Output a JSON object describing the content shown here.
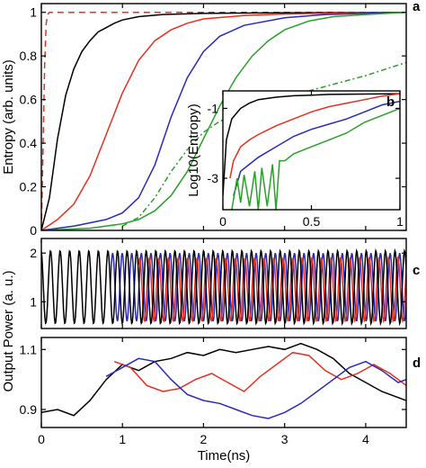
{
  "chart_data": [
    {
      "id": "a",
      "type": "line",
      "panel_label": "a",
      "ylabel": "Entropy (arb. units)",
      "xlabel": "",
      "xlim": [
        0,
        4.5
      ],
      "ylim": [
        0,
        1.04
      ],
      "xticks": [
        0,
        1,
        2,
        3,
        4
      ],
      "xtick_labels": [
        "",
        "",
        "",
        "",
        ""
      ],
      "yticks": [
        0,
        0.2,
        0.4,
        0.6,
        0.8,
        1
      ],
      "ytick_labels": [
        "0",
        "0.2",
        "0.4",
        "0.6",
        "0.8",
        "1"
      ],
      "grid": false,
      "series": [
        {
          "color": "#e53020",
          "style": "dashed",
          "x": [
            0,
            0.02,
            0.04,
            0.06,
            0.08,
            0.1,
            4.5
          ],
          "y": [
            0,
            0.35,
            0.75,
            0.95,
            0.99,
            1.0,
            1.0
          ]
        },
        {
          "color": "#000000",
          "style": "solid",
          "x": [
            0,
            0.1,
            0.2,
            0.3,
            0.4,
            0.5,
            0.6,
            0.7,
            0.8,
            0.9,
            1.0,
            1.2,
            1.5,
            2.0,
            3.0,
            4.5
          ],
          "y": [
            0,
            0.15,
            0.42,
            0.62,
            0.74,
            0.82,
            0.87,
            0.91,
            0.93,
            0.95,
            0.965,
            0.98,
            0.99,
            0.995,
            0.998,
            1.0
          ]
        },
        {
          "color": "#e53020",
          "style": "solid",
          "x": [
            0,
            0.2,
            0.4,
            0.6,
            0.8,
            1.0,
            1.2,
            1.4,
            1.6,
            1.8,
            2.0,
            2.5,
            3.0,
            3.5,
            4.5
          ],
          "y": [
            0,
            0.05,
            0.12,
            0.25,
            0.44,
            0.63,
            0.78,
            0.87,
            0.92,
            0.95,
            0.97,
            0.985,
            0.992,
            0.996,
            1.0
          ]
        },
        {
          "color": "#2a2ab8",
          "style": "solid",
          "x": [
            0,
            0.4,
            0.8,
            1.0,
            1.2,
            1.4,
            1.6,
            1.8,
            2.0,
            2.2,
            2.5,
            3.0,
            3.5,
            4.0,
            4.5
          ],
          "y": [
            0,
            0.02,
            0.05,
            0.08,
            0.15,
            0.3,
            0.52,
            0.7,
            0.82,
            0.89,
            0.94,
            0.975,
            0.99,
            0.995,
            1.0
          ]
        },
        {
          "color": "#2aa02a",
          "style": "solid",
          "x": [
            0,
            0.6,
            1.0,
            1.2,
            1.4,
            1.6,
            1.8,
            2.0,
            2.2,
            2.4,
            2.6,
            2.8,
            3.0,
            3.3,
            3.6,
            4.0,
            4.5
          ],
          "y": [
            0,
            0.01,
            0.03,
            0.05,
            0.09,
            0.16,
            0.27,
            0.42,
            0.57,
            0.7,
            0.8,
            0.87,
            0.92,
            0.96,
            0.98,
            0.99,
            1.0
          ]
        },
        {
          "color": "#2aa02a",
          "style": "dashdot",
          "x": [
            1.0,
            1.2,
            1.4,
            1.6,
            1.8,
            2.0,
            2.2,
            2.5,
            3.0,
            3.5,
            4.0,
            4.5
          ],
          "y": [
            0.02,
            0.06,
            0.15,
            0.27,
            0.37,
            0.45,
            0.5,
            0.55,
            0.61,
            0.66,
            0.71,
            0.77
          ]
        }
      ]
    },
    {
      "id": "b",
      "type": "line",
      "panel_label": "b",
      "ylabel": "Log10(Entropy)",
      "xlabel": "",
      "xlim": [
        0,
        1
      ],
      "ylim": [
        -3.9,
        -0.5
      ],
      "xticks": [
        0,
        0.5,
        1
      ],
      "xtick_labels": [
        "0",
        "0.5",
        "1"
      ],
      "yticks": [
        -3,
        -1
      ],
      "ytick_labels": [
        "-3",
        "-1"
      ],
      "grid": false,
      "series": [
        {
          "color": "#000000",
          "style": "solid",
          "x": [
            0,
            0.02,
            0.05,
            0.1,
            0.15,
            0.2,
            0.3,
            0.4,
            0.5,
            0.6,
            0.8,
            1.0
          ],
          "y": [
            -3.5,
            -1.9,
            -1.3,
            -1.0,
            -0.85,
            -0.75,
            -0.68,
            -0.64,
            -0.62,
            -0.6,
            -0.59,
            -0.58
          ]
        },
        {
          "color": "#e53020",
          "style": "solid",
          "x": [
            0.04,
            0.06,
            0.1,
            0.15,
            0.2,
            0.3,
            0.4,
            0.5,
            0.6,
            0.7,
            0.8,
            0.9,
            1.0
          ],
          "y": [
            -3.0,
            -2.5,
            -2.1,
            -1.9,
            -1.75,
            -1.5,
            -1.3,
            -1.1,
            -0.95,
            -0.85,
            -0.75,
            -0.65,
            -0.58
          ]
        },
        {
          "color": "#2a2ab8",
          "style": "solid",
          "x": [
            0.06,
            0.1,
            0.15,
            0.2,
            0.3,
            0.4,
            0.5,
            0.6,
            0.7,
            0.8,
            0.9,
            1.0
          ],
          "y": [
            -3.5,
            -2.8,
            -2.6,
            -2.4,
            -2.1,
            -1.8,
            -1.6,
            -1.45,
            -1.3,
            -1.1,
            -0.9,
            -0.8
          ]
        },
        {
          "color": "#2aa02a",
          "style": "solid",
          "x": [
            0.05,
            0.08,
            0.1,
            0.12,
            0.15,
            0.18,
            0.2,
            0.22,
            0.25,
            0.28,
            0.3,
            0.32,
            0.35,
            0.4,
            0.5,
            0.6,
            0.7,
            0.8,
            0.9,
            1.0
          ],
          "y": [
            -3.9,
            -3.0,
            -3.7,
            -2.9,
            -3.8,
            -2.8,
            -3.9,
            -2.7,
            -3.8,
            -2.6,
            -3.9,
            -2.5,
            -2.5,
            -2.3,
            -2.1,
            -1.9,
            -1.7,
            -1.4,
            -1.2,
            -1.0
          ]
        }
      ]
    },
    {
      "id": "c",
      "type": "line",
      "panel_label": "c",
      "ylabel": "Output Power (a. u.)",
      "xlabel": "",
      "xlim": [
        0,
        4.5
      ],
      "ylim": [
        0.45,
        2.3
      ],
      "xticks": [
        0,
        1,
        2,
        3,
        4
      ],
      "xtick_labels": [
        "",
        "",
        "",
        "",
        ""
      ],
      "yticks": [
        1,
        2
      ],
      "ytick_labels": [
        "1",
        "2"
      ],
      "grid": false,
      "oscillation_period_ns": 0.118,
      "series": [
        {
          "color": "#2a2ab8",
          "style": "solid",
          "x_start": 0.85,
          "x_end": 4.5,
          "min": 0.6,
          "max": 2.0
        },
        {
          "color": "#e53020",
          "style": "solid",
          "x_start": 1.2,
          "x_end": 4.5,
          "min": 0.6,
          "max": 1.9
        },
        {
          "color": "#000000",
          "style": "solid",
          "x_start": 0.0,
          "x_end": 4.5,
          "min": 0.55,
          "max": 2.05
        }
      ]
    },
    {
      "id": "d",
      "type": "line",
      "panel_label": "d",
      "ylabel": "",
      "xlabel": "Time(ns)",
      "xlim": [
        0,
        4.5
      ],
      "ylim": [
        0.84,
        1.14
      ],
      "xticks": [
        0,
        1,
        2,
        3,
        4
      ],
      "xtick_labels": [
        "0",
        "1",
        "2",
        "3",
        "4"
      ],
      "yticks": [
        0.9,
        1.1
      ],
      "ytick_labels": [
        "0.9",
        "1.1"
      ],
      "grid": false,
      "series": [
        {
          "color": "#000000",
          "style": "solid",
          "x": [
            0,
            0.2,
            0.4,
            0.6,
            0.8,
            1.0,
            1.2,
            1.4,
            1.6,
            1.8,
            2.0,
            2.2,
            2.4,
            2.6,
            2.8,
            3.0,
            3.2,
            3.4,
            3.6,
            3.8,
            4.0,
            4.2,
            4.4,
            4.5
          ],
          "y": [
            0.89,
            0.9,
            0.88,
            0.93,
            1.0,
            1.05,
            1.03,
            1.06,
            1.07,
            1.09,
            1.08,
            1.1,
            1.09,
            1.1,
            1.11,
            1.1,
            1.12,
            1.1,
            1.07,
            1.02,
            0.99,
            0.96,
            0.94,
            0.93
          ]
        },
        {
          "color": "#e53020",
          "style": "solid",
          "x": [
            0.9,
            1.1,
            1.3,
            1.5,
            1.7,
            1.9,
            2.1,
            2.3,
            2.5,
            2.7,
            2.9,
            3.1,
            3.3,
            3.5,
            3.7,
            3.9,
            4.1,
            4.3,
            4.5
          ],
          "y": [
            1.06,
            1.04,
            0.98,
            0.96,
            0.97,
            1.0,
            1.02,
            0.99,
            0.96,
            1.01,
            1.05,
            1.09,
            1.08,
            1.03,
            1.0,
            1.02,
            1.05,
            1.02,
            0.98
          ]
        },
        {
          "color": "#2a2ab8",
          "style": "solid",
          "x": [
            0.8,
            1.0,
            1.2,
            1.4,
            1.6,
            1.8,
            2.0,
            2.2,
            2.4,
            2.6,
            2.8,
            3.0,
            3.2,
            3.4,
            3.6,
            3.8,
            4.0,
            4.2,
            4.4,
            4.5
          ],
          "y": [
            1.01,
            1.04,
            1.07,
            1.06,
            1.0,
            0.95,
            0.93,
            0.92,
            0.9,
            0.88,
            0.87,
            0.89,
            0.92,
            0.96,
            1.0,
            1.04,
            1.06,
            1.03,
            0.99,
            1.0
          ]
        }
      ]
    }
  ]
}
